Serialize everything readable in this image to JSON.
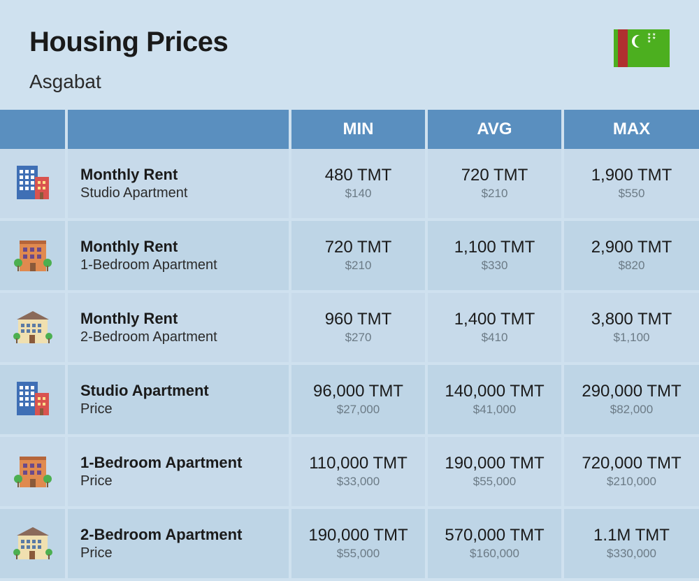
{
  "header": {
    "title": "Housing Prices",
    "city": "Asgabat"
  },
  "columns": {
    "min": "MIN",
    "avg": "AVG",
    "max": "MAX"
  },
  "colors": {
    "page_bg": "#cfe1ef",
    "header_bg": "#5a8fbf",
    "header_text": "#ffffff",
    "row_bg": "#bed5e6",
    "row_alt_bg": "#c7daea",
    "text_main": "#1a1a1a",
    "text_usd": "#6b7a85",
    "flag_green": "#4caf1f",
    "flag_red": "#b03030"
  },
  "rows": [
    {
      "icon": "studio",
      "title": "Monthly Rent",
      "sub": "Studio Apartment",
      "min_tmt": "480 TMT",
      "min_usd": "$140",
      "avg_tmt": "720 TMT",
      "avg_usd": "$210",
      "max_tmt": "1,900 TMT",
      "max_usd": "$550"
    },
    {
      "icon": "onebr",
      "title": "Monthly Rent",
      "sub": "1-Bedroom Apartment",
      "min_tmt": "720 TMT",
      "min_usd": "$210",
      "avg_tmt": "1,100 TMT",
      "avg_usd": "$330",
      "max_tmt": "2,900 TMT",
      "max_usd": "$820"
    },
    {
      "icon": "twobr",
      "title": "Monthly Rent",
      "sub": "2-Bedroom Apartment",
      "min_tmt": "960 TMT",
      "min_usd": "$270",
      "avg_tmt": "1,400 TMT",
      "avg_usd": "$410",
      "max_tmt": "3,800 TMT",
      "max_usd": "$1,100"
    },
    {
      "icon": "studio",
      "title": "Studio Apartment",
      "sub": "Price",
      "min_tmt": "96,000 TMT",
      "min_usd": "$27,000",
      "avg_tmt": "140,000 TMT",
      "avg_usd": "$41,000",
      "max_tmt": "290,000 TMT",
      "max_usd": "$82,000"
    },
    {
      "icon": "onebr",
      "title": "1-Bedroom Apartment",
      "sub": "Price",
      "min_tmt": "110,000 TMT",
      "min_usd": "$33,000",
      "avg_tmt": "190,000 TMT",
      "avg_usd": "$55,000",
      "max_tmt": "720,000 TMT",
      "max_usd": "$210,000"
    },
    {
      "icon": "twobr",
      "title": "2-Bedroom Apartment",
      "sub": "Price",
      "min_tmt": "190,000 TMT",
      "min_usd": "$55,000",
      "avg_tmt": "570,000 TMT",
      "avg_usd": "$160,000",
      "max_tmt": "1.1M TMT",
      "max_usd": "$330,000"
    }
  ]
}
